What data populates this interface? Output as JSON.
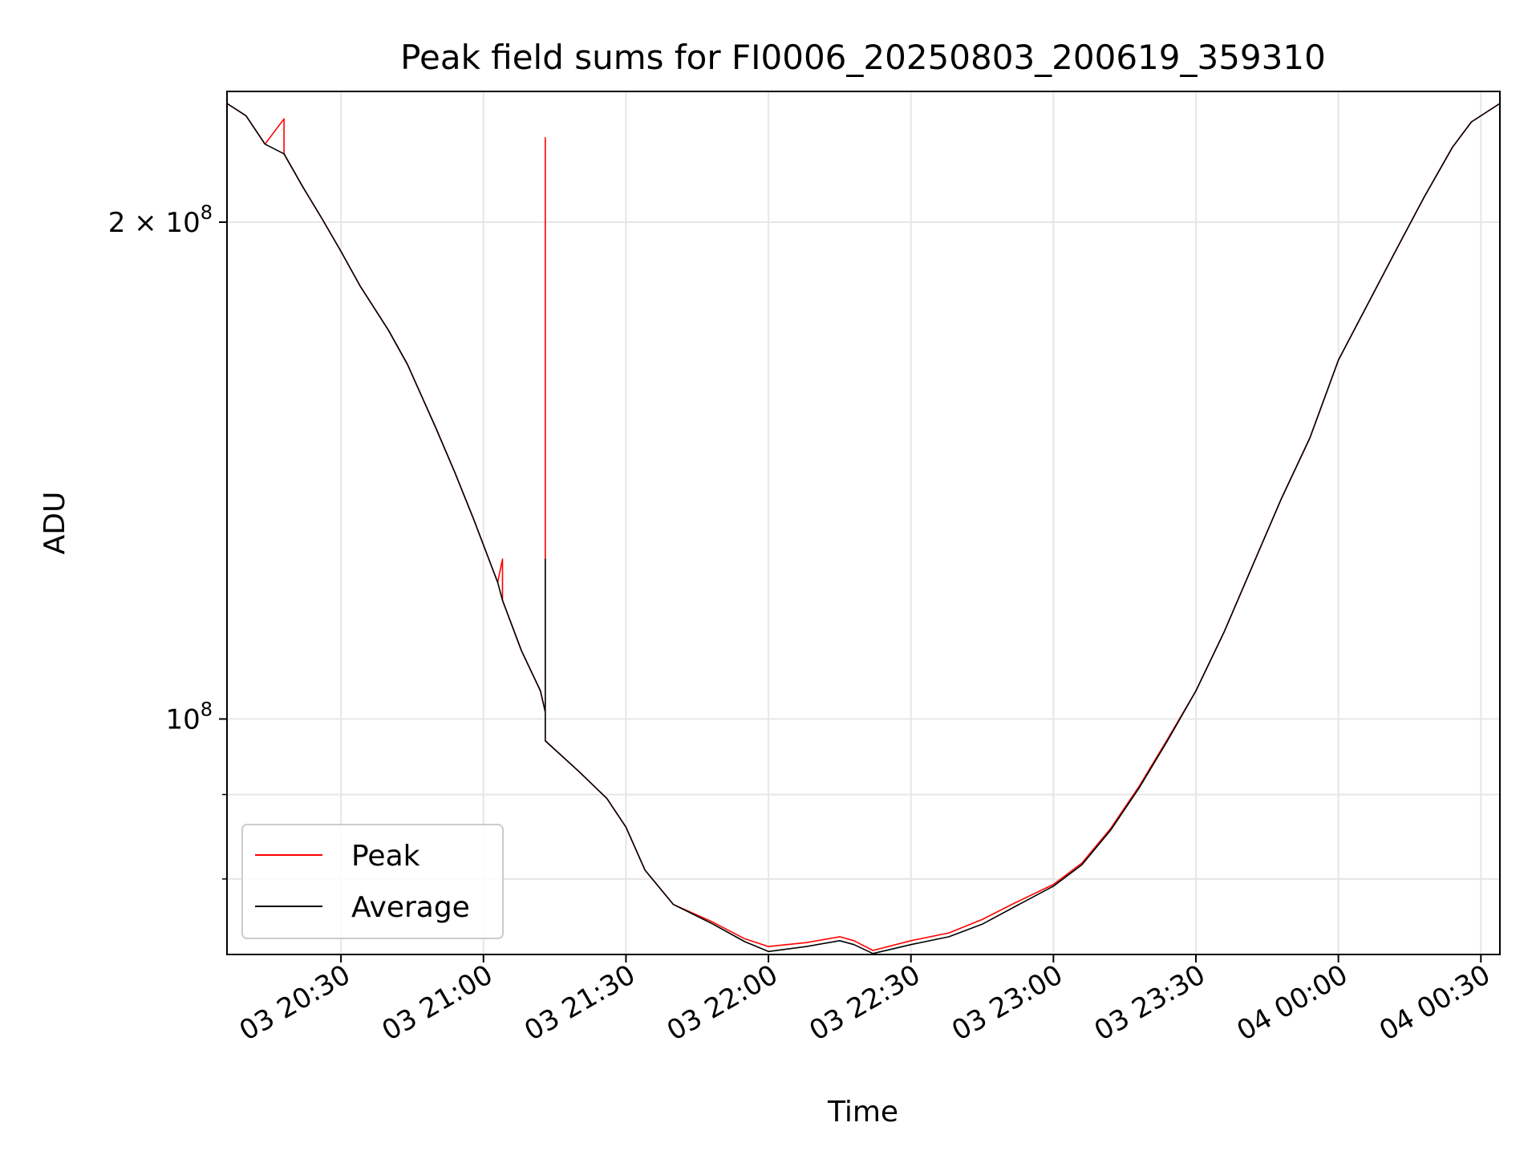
{
  "chart_data": {
    "type": "line",
    "title": "Peak field sums for FI0006_20250803_200619_359310",
    "xlabel": "Time",
    "ylabel": "ADU",
    "y_scale": "log",
    "ylim": [
      72000000,
      240000000
    ],
    "xlim": [
      "2025-08-03 20:06",
      "2025-08-04 00:34"
    ],
    "grid": true,
    "legend_position": "lower-left",
    "x_ticks": [
      {
        "t": "2025-08-03 20:30",
        "label": "03 20:30"
      },
      {
        "t": "2025-08-03 21:00",
        "label": "03 21:00"
      },
      {
        "t": "2025-08-03 21:30",
        "label": "03 21:30"
      },
      {
        "t": "2025-08-03 22:00",
        "label": "03 22:00"
      },
      {
        "t": "2025-08-03 22:30",
        "label": "03 22:30"
      },
      {
        "t": "2025-08-03 23:00",
        "label": "03 23:00"
      },
      {
        "t": "2025-08-03 23:30",
        "label": "03 23:30"
      },
      {
        "t": "2025-08-04 00:00",
        "label": "04 00:00"
      },
      {
        "t": "2025-08-04 00:30",
        "label": "04 00:30"
      }
    ],
    "y_major_ticks": [
      {
        "value": 100000000,
        "base": "10",
        "exp": "8",
        "mantissa": ""
      },
      {
        "value": 200000000,
        "base": "10",
        "exp": "8",
        "mantissa": "2 × "
      }
    ],
    "y_minor_ticks": [
      80000000,
      90000000
    ],
    "series": [
      {
        "name": "Peak",
        "color": "#ff0000",
        "points": [
          [
            "2025-08-03 20:06",
            236000000
          ],
          [
            "2025-08-03 20:10",
            232000000
          ],
          [
            "2025-08-03 20:14",
            223000000
          ],
          [
            "2025-08-03 20:18",
            231000000
          ],
          [
            "2025-08-03 20:18",
            220000000
          ],
          [
            "2025-08-03 20:22",
            210000000
          ],
          [
            "2025-08-03 20:26",
            201000000
          ],
          [
            "2025-08-03 20:30",
            192000000
          ],
          [
            "2025-08-03 20:34",
            183000000
          ],
          [
            "2025-08-03 20:40",
            172000000
          ],
          [
            "2025-08-03 20:44",
            164000000
          ],
          [
            "2025-08-03 20:50",
            150000000
          ],
          [
            "2025-08-03 20:54",
            141000000
          ],
          [
            "2025-08-03 20:58",
            132000000
          ],
          [
            "2025-08-03 21:03",
            121000000
          ],
          [
            "2025-08-03 21:04",
            125000000
          ],
          [
            "2025-08-03 21:04",
            118000000
          ],
          [
            "2025-08-03 21:08",
            110000000
          ],
          [
            "2025-08-03 21:12",
            104000000
          ],
          [
            "2025-08-03 21:13",
            101000000
          ],
          [
            "2025-08-03 21:13",
            225000000
          ],
          [
            "2025-08-03 21:13",
            97000000
          ],
          [
            "2025-08-03 21:20",
            93000000
          ],
          [
            "2025-08-03 21:26",
            89500000
          ],
          [
            "2025-08-03 21:30",
            86000000
          ],
          [
            "2025-08-03 21:34",
            81000000
          ],
          [
            "2025-08-03 21:40",
            77200000
          ],
          [
            "2025-08-03 21:48",
            75400000
          ],
          [
            "2025-08-03 21:55",
            73600000
          ],
          [
            "2025-08-03 22:00",
            72800000
          ],
          [
            "2025-08-03 22:08",
            73200000
          ],
          [
            "2025-08-03 22:15",
            73800000
          ],
          [
            "2025-08-03 22:18",
            73400000
          ],
          [
            "2025-08-03 22:22",
            72400000
          ],
          [
            "2025-08-03 22:30",
            73400000
          ],
          [
            "2025-08-03 22:38",
            74200000
          ],
          [
            "2025-08-03 22:45",
            75600000
          ],
          [
            "2025-08-03 22:52",
            77400000
          ],
          [
            "2025-08-03 23:00",
            79400000
          ],
          [
            "2025-08-03 23:06",
            81800000
          ],
          [
            "2025-08-03 23:12",
            85800000
          ],
          [
            "2025-08-03 23:18",
            91000000
          ],
          [
            "2025-08-03 23:24",
            97200000
          ],
          [
            "2025-08-03 23:30",
            104000000
          ],
          [
            "2025-08-03 23:36",
            113000000
          ],
          [
            "2025-08-03 23:42",
            124000000
          ],
          [
            "2025-08-03 23:48",
            136000000
          ],
          [
            "2025-08-03 23:54",
            148000000
          ],
          [
            "2025-08-04 00:00",
            165000000
          ],
          [
            "2025-08-04 00:06",
            178000000
          ],
          [
            "2025-08-04 00:12",
            192000000
          ],
          [
            "2025-08-04 00:18",
            207000000
          ],
          [
            "2025-08-04 00:24",
            222000000
          ],
          [
            "2025-08-04 00:28",
            230000000
          ],
          [
            "2025-08-04 00:34",
            236000000
          ]
        ]
      },
      {
        "name": "Average",
        "color": "#000000",
        "points": [
          [
            "2025-08-03 20:06",
            236000000
          ],
          [
            "2025-08-03 20:10",
            232000000
          ],
          [
            "2025-08-03 20:14",
            223000000
          ],
          [
            "2025-08-03 20:18",
            220000000
          ],
          [
            "2025-08-03 20:22",
            210000000
          ],
          [
            "2025-08-03 20:26",
            201000000
          ],
          [
            "2025-08-03 20:30",
            192000000
          ],
          [
            "2025-08-03 20:34",
            183000000
          ],
          [
            "2025-08-03 20:40",
            172000000
          ],
          [
            "2025-08-03 20:44",
            164000000
          ],
          [
            "2025-08-03 20:50",
            150000000
          ],
          [
            "2025-08-03 20:54",
            141000000
          ],
          [
            "2025-08-03 20:58",
            132000000
          ],
          [
            "2025-08-03 21:03",
            121000000
          ],
          [
            "2025-08-03 21:04",
            118000000
          ],
          [
            "2025-08-03 21:08",
            110000000
          ],
          [
            "2025-08-03 21:12",
            104000000
          ],
          [
            "2025-08-03 21:13",
            101000000
          ],
          [
            "2025-08-03 21:13",
            125000000
          ],
          [
            "2025-08-03 21:13",
            97000000
          ],
          [
            "2025-08-03 21:20",
            93000000
          ],
          [
            "2025-08-03 21:26",
            89500000
          ],
          [
            "2025-08-03 21:30",
            86000000
          ],
          [
            "2025-08-03 21:34",
            81000000
          ],
          [
            "2025-08-03 21:40",
            77200000
          ],
          [
            "2025-08-03 21:48",
            75200000
          ],
          [
            "2025-08-03 21:55",
            73300000
          ],
          [
            "2025-08-03 22:00",
            72300000
          ],
          [
            "2025-08-03 22:08",
            72800000
          ],
          [
            "2025-08-03 22:15",
            73400000
          ],
          [
            "2025-08-03 22:18",
            73000000
          ],
          [
            "2025-08-03 22:22",
            72100000
          ],
          [
            "2025-08-03 22:30",
            73000000
          ],
          [
            "2025-08-03 22:38",
            73800000
          ],
          [
            "2025-08-03 22:45",
            75100000
          ],
          [
            "2025-08-03 22:52",
            77000000
          ],
          [
            "2025-08-03 23:00",
            79200000
          ],
          [
            "2025-08-03 23:06",
            81600000
          ],
          [
            "2025-08-03 23:12",
            85600000
          ],
          [
            "2025-08-03 23:18",
            90800000
          ],
          [
            "2025-08-03 23:24",
            97000000
          ],
          [
            "2025-08-03 23:30",
            104000000
          ],
          [
            "2025-08-03 23:36",
            113000000
          ],
          [
            "2025-08-03 23:42",
            124000000
          ],
          [
            "2025-08-03 23:48",
            136000000
          ],
          [
            "2025-08-03 23:54",
            148000000
          ],
          [
            "2025-08-04 00:00",
            165000000
          ],
          [
            "2025-08-04 00:06",
            178000000
          ],
          [
            "2025-08-04 00:12",
            192000000
          ],
          [
            "2025-08-04 00:18",
            207000000
          ],
          [
            "2025-08-04 00:24",
            222000000
          ],
          [
            "2025-08-04 00:28",
            230000000
          ],
          [
            "2025-08-04 00:34",
            236000000
          ]
        ]
      }
    ]
  }
}
